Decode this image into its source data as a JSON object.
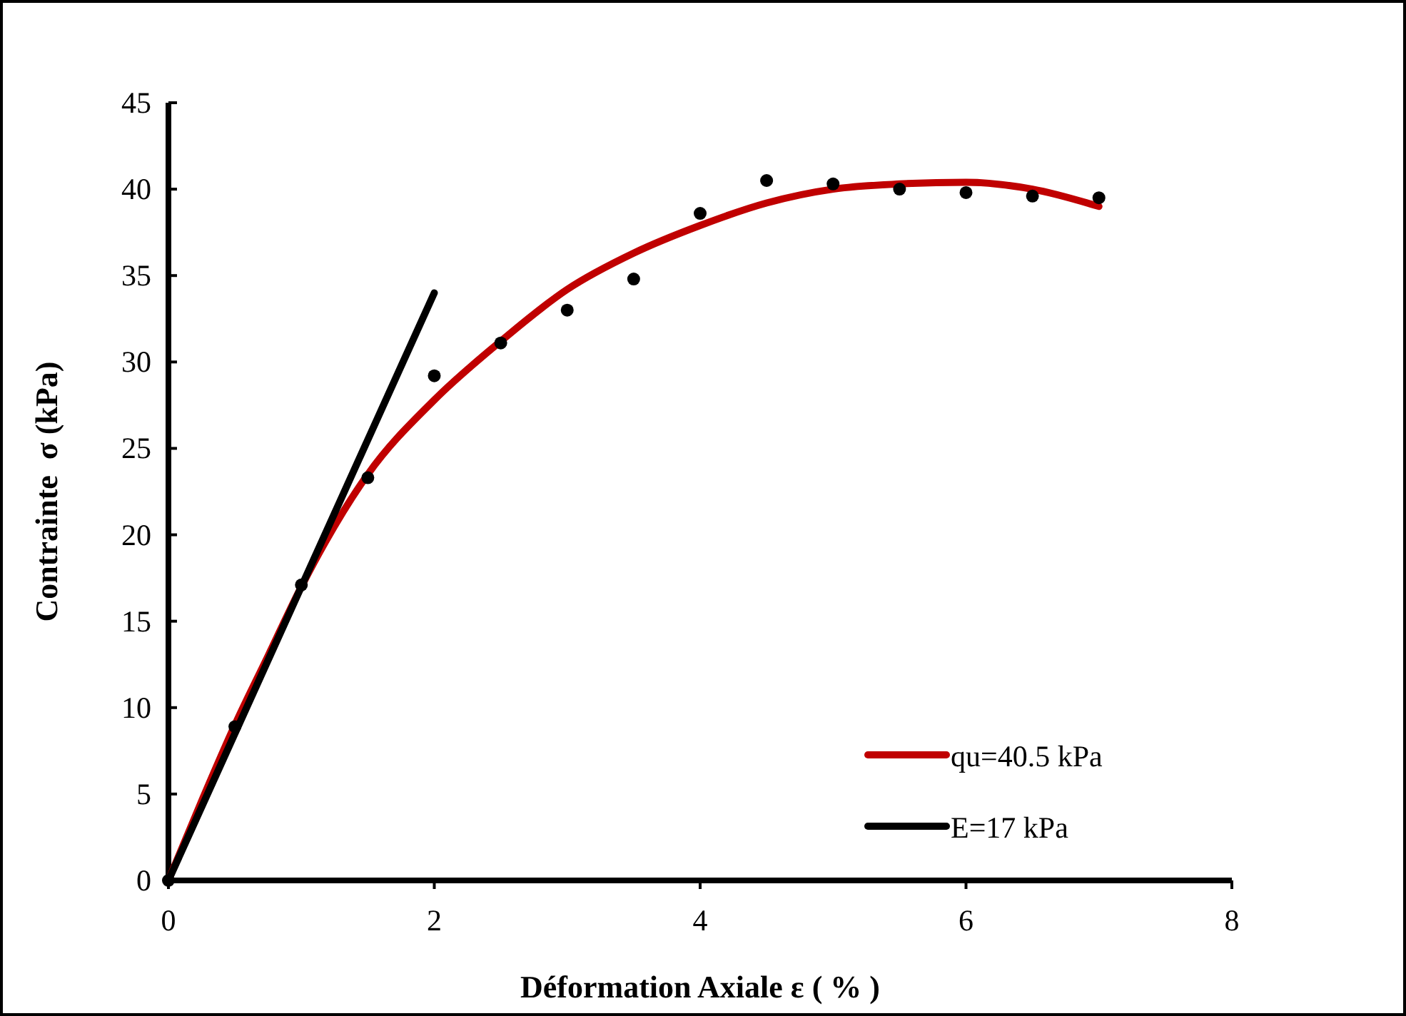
{
  "chart_data": {
    "type": "scatter",
    "xlabel": "Déformation Axiale ε ( % )",
    "ylabel": "Contrainte  σ (kPa)",
    "xlim": [
      0,
      8
    ],
    "ylim": [
      0,
      45
    ],
    "xticks": [
      0,
      2,
      4,
      6,
      8
    ],
    "yticks": [
      0,
      5,
      10,
      15,
      20,
      25,
      30,
      35,
      40,
      45
    ],
    "grid": false,
    "legend": "bottom right",
    "series": [
      {
        "type": "scatter",
        "color": "#000000",
        "marker": "circle",
        "x": [
          0,
          0.5,
          1,
          1.5,
          2,
          2.5,
          3,
          3.5,
          4,
          4.5,
          5,
          5.5,
          6,
          6.5,
          7
        ],
        "values": [
          0,
          8.9,
          17.1,
          23.3,
          29.2,
          31.1,
          33,
          34.8,
          38.6,
          40.5,
          40.3,
          40,
          39.8,
          39.6,
          39.5
        ]
      },
      {
        "type": "line",
        "name": "qu=40.5 kPa",
        "color": "#c00000",
        "marker": "none",
        "x": [
          0,
          0.25,
          0.5,
          0.75,
          1,
          1.5,
          2,
          2.5,
          3,
          3.5,
          4,
          4.5,
          5,
          5.5,
          6,
          6.5,
          7
        ],
        "values": [
          0,
          4.6,
          9,
          13,
          17,
          23.5,
          27.8,
          31.2,
          34.2,
          36.3,
          37.9,
          39.2,
          40,
          40.3,
          40.4,
          40,
          39
        ]
      },
      {
        "type": "line",
        "name": "E=17 kPa",
        "color": "#000000",
        "marker": "none",
        "x": [
          0,
          2
        ],
        "values": [
          0,
          34
        ]
      }
    ]
  }
}
